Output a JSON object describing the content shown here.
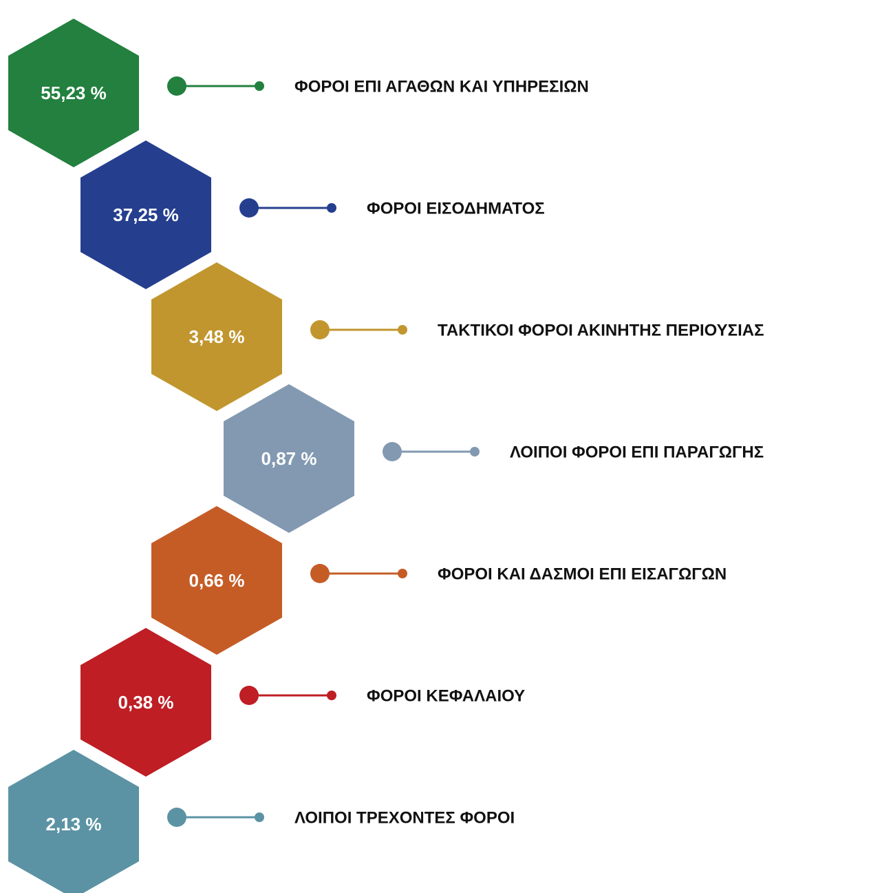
{
  "items": [
    {
      "percent": "55,23 %",
      "label": "ΦΟΡΟΙ ΕΠΙ ΑΓΑΘΩΝ ΚΑΙ ΥΠΗΡΕΣΙΩΝ",
      "color": "#23803f"
    },
    {
      "percent": "37,25 %",
      "label": "ΦΟΡΟΙ ΕΙΣΟΔΗΜΑΤΟΣ",
      "color": "#253f8e"
    },
    {
      "percent": "3,48 %",
      "label": "ΤΑΚΤΙΚΟΙ ΦΟΡΟΙ ΑΚΙΝΗΤΗΣ ΠΕΡΙΟΥΣΙΑΣ",
      "color": "#c1962e"
    },
    {
      "percent": "0,87 %",
      "label": "ΛΟΙΠΟΙ ΦΟΡΟΙ ΕΠΙ ΠΑΡΑΓΩΓΗΣ",
      "color": "#8299b1"
    },
    {
      "percent": "0,66 %",
      "label": "ΦΟΡΟΙ ΚΑΙ ΔΑΣΜΟΙ ΕΠΙ ΕΙΣΑΓΩΓΩΝ",
      "color": "#c55c26"
    },
    {
      "percent": "0,38 %",
      "label": "ΦΟΡΟΙ ΚΕΦΑΛΑΙΟΥ",
      "color": "#be1e24"
    },
    {
      "percent": "2,13 %",
      "label": "ΛΟΙΠΟΙ ΤΡΕΧΟΝΤΕΣ ΦΟΡΟΙ",
      "color": "#5b93a4"
    }
  ]
}
